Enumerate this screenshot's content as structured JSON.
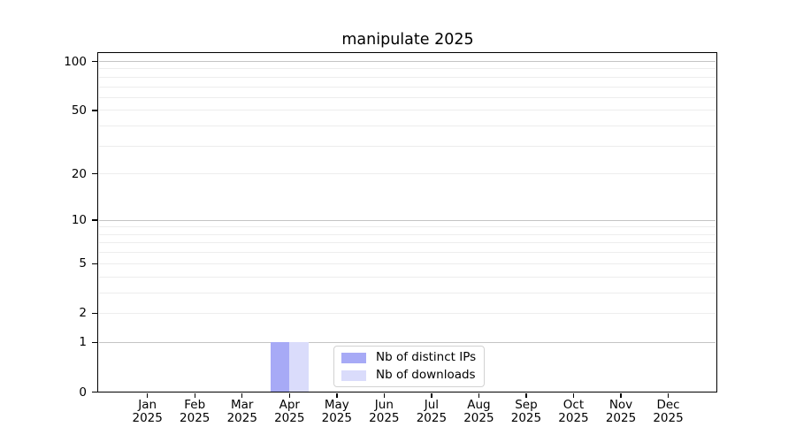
{
  "chart_data": {
    "type": "bar",
    "title": "manipulate 2025",
    "x_months": [
      "Jan",
      "Feb",
      "Mar",
      "Apr",
      "May",
      "Jun",
      "Jul",
      "Aug",
      "Sep",
      "Oct",
      "Nov",
      "Dec"
    ],
    "x_year": "2025",
    "series": [
      {
        "name": "Nb of distinct IPs",
        "color": "#a7aaf6",
        "values": [
          0,
          0,
          0,
          1,
          0,
          0,
          0,
          0,
          0,
          0,
          0,
          0
        ]
      },
      {
        "name": "Nb of downloads",
        "color": "#dadcfb",
        "values": [
          0,
          0,
          0,
          1,
          0,
          0,
          0,
          0,
          0,
          0,
          0,
          0
        ]
      }
    ],
    "y_axis": {
      "scale": "log1p",
      "tick_values": [
        0,
        1,
        2,
        5,
        10,
        20,
        50,
        100
      ],
      "tick_labels": [
        "0",
        "1",
        "2",
        "5",
        "10",
        "20",
        "50",
        "100"
      ],
      "major_gridlines": [
        1,
        10,
        100
      ],
      "minor_gridlines": [
        2,
        3,
        4,
        5,
        6,
        7,
        8,
        9,
        20,
        30,
        40,
        50,
        60,
        70,
        80,
        90
      ],
      "ylim": [
        0,
        112
      ]
    },
    "grid": "horizontal",
    "legend_position": "lower center",
    "colors": {
      "major_grid": "#c4c4c4",
      "minor_grid": "#ededed",
      "axis": "#000000",
      "text": "#000000",
      "background": "#ffffff"
    }
  }
}
